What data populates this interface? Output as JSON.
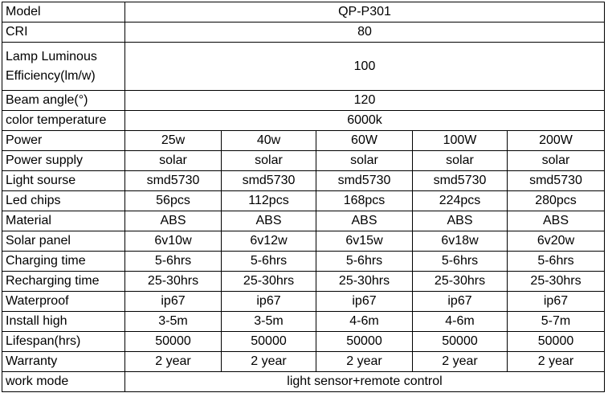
{
  "table": {
    "model": {
      "label": "Model",
      "value": "QP-P301"
    },
    "cri": {
      "label": "CRI",
      "value": "80"
    },
    "efficiency": {
      "label": "Lamp Luminous Efficiency(lm/w)",
      "value": "100"
    },
    "beam": {
      "label": "Beam angle(°)",
      "value": "120"
    },
    "color_temp": {
      "label": "color temperature",
      "value": "6000k"
    },
    "rows": [
      {
        "label": "Power",
        "values": [
          "25w",
          "40w",
          "60W",
          "100W",
          "200W"
        ]
      },
      {
        "label": "Power supply",
        "values": [
          "solar",
          "solar",
          "solar",
          "solar",
          "solar"
        ]
      },
      {
        "label": "Light sourse",
        "values": [
          "smd5730",
          "smd5730",
          "smd5730",
          "smd5730",
          "smd5730"
        ]
      },
      {
        "label": "Led chips",
        "values": [
          "56pcs",
          "112pcs",
          "168pcs",
          "224pcs",
          "280pcs"
        ]
      },
      {
        "label": "Material",
        "values": [
          "ABS",
          "ABS",
          "ABS",
          "ABS",
          "ABS"
        ]
      },
      {
        "label": "Solar panel",
        "values": [
          "6v10w",
          "6v12w",
          "6v15w",
          "6v18w",
          "6v20w"
        ]
      },
      {
        "label": "Charging time",
        "values": [
          "5-6hrs",
          "5-6hrs",
          "5-6hrs",
          "5-6hrs",
          "5-6hrs"
        ]
      },
      {
        "label": "Recharging time",
        "values": [
          "25-30hrs",
          "25-30hrs",
          "25-30hrs",
          "25-30hrs",
          "25-30hrs"
        ]
      },
      {
        "label": "Waterproof",
        "values": [
          "ip67",
          "ip67",
          "ip67",
          "ip67",
          "ip67"
        ]
      },
      {
        "label": "Install high",
        "values": [
          "3-5m",
          "3-5m",
          "4-6m",
          "4-6m",
          "5-7m"
        ]
      },
      {
        "label": "Lifespan(hrs)",
        "values": [
          "50000",
          "50000",
          "50000",
          "50000",
          "50000"
        ]
      },
      {
        "label": "Warranty",
        "values": [
          "2 year",
          "2 year",
          "2 year",
          "2 year",
          "2 year"
        ]
      }
    ],
    "work_mode": {
      "label": "work mode",
      "value": "light sensor+remote control"
    }
  }
}
